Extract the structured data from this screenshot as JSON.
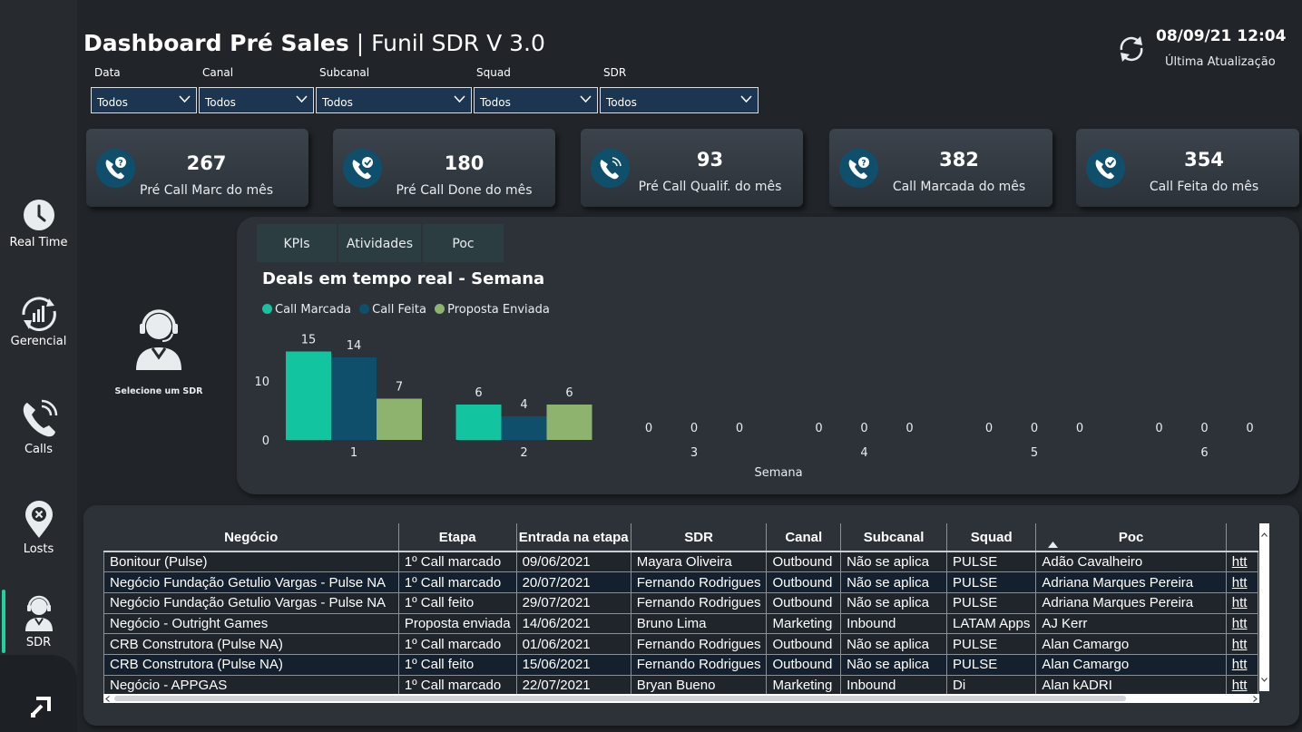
{
  "sidebar": {
    "items": [
      {
        "label": "Real Time",
        "icon": "clock-icon"
      },
      {
        "label": "Gerencial",
        "icon": "chart-refresh-icon"
      },
      {
        "label": "Calls",
        "icon": "phone-icon"
      },
      {
        "label": "Losts",
        "icon": "location-x-icon"
      },
      {
        "label": "SDR",
        "icon": "agent-icon"
      }
    ],
    "active": "SDR",
    "bottom_icon": "logo-icon"
  },
  "header": {
    "title_bold": "Dashboard Pré Sales",
    "title_sep": " | ",
    "title_rest": "Funil SDR V 3.0",
    "timestamp": "08/09/21 12:04",
    "timestamp_label": "Última Atualização",
    "refresh_icon": "refresh-icon"
  },
  "filters": [
    {
      "label": "Data",
      "value": "Todos"
    },
    {
      "label": "Canal",
      "value": "Todos"
    },
    {
      "label": "Subcanal",
      "value": "Todos"
    },
    {
      "label": "Squad",
      "value": "Todos"
    },
    {
      "label": "SDR",
      "value": "Todos"
    }
  ],
  "kpis": [
    {
      "value": "267",
      "label": "Pré Call Marc do mês",
      "icon": "phone-question-icon"
    },
    {
      "value": "180",
      "label": "Pré Call Done do mês",
      "icon": "phone-check-icon"
    },
    {
      "value": "93",
      "label": "Pré Call Qualif. do mês",
      "icon": "phone-ring-icon"
    },
    {
      "value": "382",
      "label": "Call Marcada do mês",
      "icon": "phone-question-icon"
    },
    {
      "value": "354",
      "label": "Call Feita do mês",
      "icon": "phone-check-icon"
    }
  ],
  "sdr_selector": {
    "text": "Selecione um SDR",
    "icon": "agent-icon"
  },
  "tabs": [
    "KPIs",
    "Atividades",
    "Poc"
  ],
  "chart_data": {
    "type": "bar",
    "title": "Deals em tempo real - Semana",
    "xlabel": "Semana",
    "ylabel": "",
    "categories": [
      "1",
      "2",
      "3",
      "4",
      "5",
      "6"
    ],
    "series": [
      {
        "name": "Call Marcada",
        "color": "#12c4a0",
        "values": [
          15,
          6,
          0,
          0,
          0,
          0
        ]
      },
      {
        "name": "Call Feita",
        "color": "#0f4f6b",
        "values": [
          14,
          4,
          0,
          0,
          0,
          0
        ]
      },
      {
        "name": "Proposta Enviada",
        "color": "#8eb36f",
        "values": [
          7,
          6,
          0,
          0,
          0,
          0
        ]
      }
    ],
    "yticks": [
      0,
      10
    ],
    "ylim": [
      0,
      15
    ],
    "legend": "top-left",
    "grid": false
  },
  "table": {
    "columns": [
      "Negócio",
      "Etapa",
      "Entrada na etapa",
      "SDR",
      "Canal",
      "Subcanal",
      "Squad",
      "Poc",
      ""
    ],
    "rows": [
      [
        "Bonitour (Pulse)",
        "1º Call marcado",
        "09/06/2021",
        "Mayara Oliveira",
        "Outbound",
        "Não se aplica",
        "PULSE",
        "Adão Cavalheiro",
        "htt"
      ],
      [
        "Negócio Fundação Getulio Vargas - Pulse NA",
        "1º Call marcado",
        "20/07/2021",
        "Fernando Rodrigues",
        "Outbound",
        "Não se aplica",
        "PULSE",
        "Adriana Marques Pereira",
        "htt"
      ],
      [
        "Negócio Fundação Getulio Vargas - Pulse NA",
        "1º Call feito",
        "29/07/2021",
        "Fernando Rodrigues",
        "Outbound",
        "Não se aplica",
        "PULSE",
        "Adriana Marques Pereira",
        "htt"
      ],
      [
        "Negócio - Outright Games",
        "Proposta enviada",
        "14/06/2021",
        "Bruno Lima",
        "Marketing",
        "Inbound",
        "LATAM Apps",
        "AJ Kerr",
        "htt"
      ],
      [
        "CRB Construtora (Pulse NA)",
        "1º Call marcado",
        "01/06/2021",
        "Fernando Rodrigues",
        "Outbound",
        "Não se aplica",
        "PULSE",
        "Alan Camargo",
        "htt"
      ],
      [
        "CRB Construtora (Pulse NA)",
        "1º Call feito",
        "15/06/2021",
        "Fernando Rodrigues",
        "Outbound",
        "Não se aplica",
        "PULSE",
        "Alan Camargo",
        "htt"
      ],
      [
        "Negócio - APPGAS",
        "1º Call marcado",
        "22/07/2021",
        "Bryan Bueno",
        "Marketing",
        "Inbound",
        "Di",
        "Alan kADRI",
        "htt"
      ]
    ],
    "sorted_column": "Poc",
    "sort_icon": "sort-ascending-icon"
  }
}
